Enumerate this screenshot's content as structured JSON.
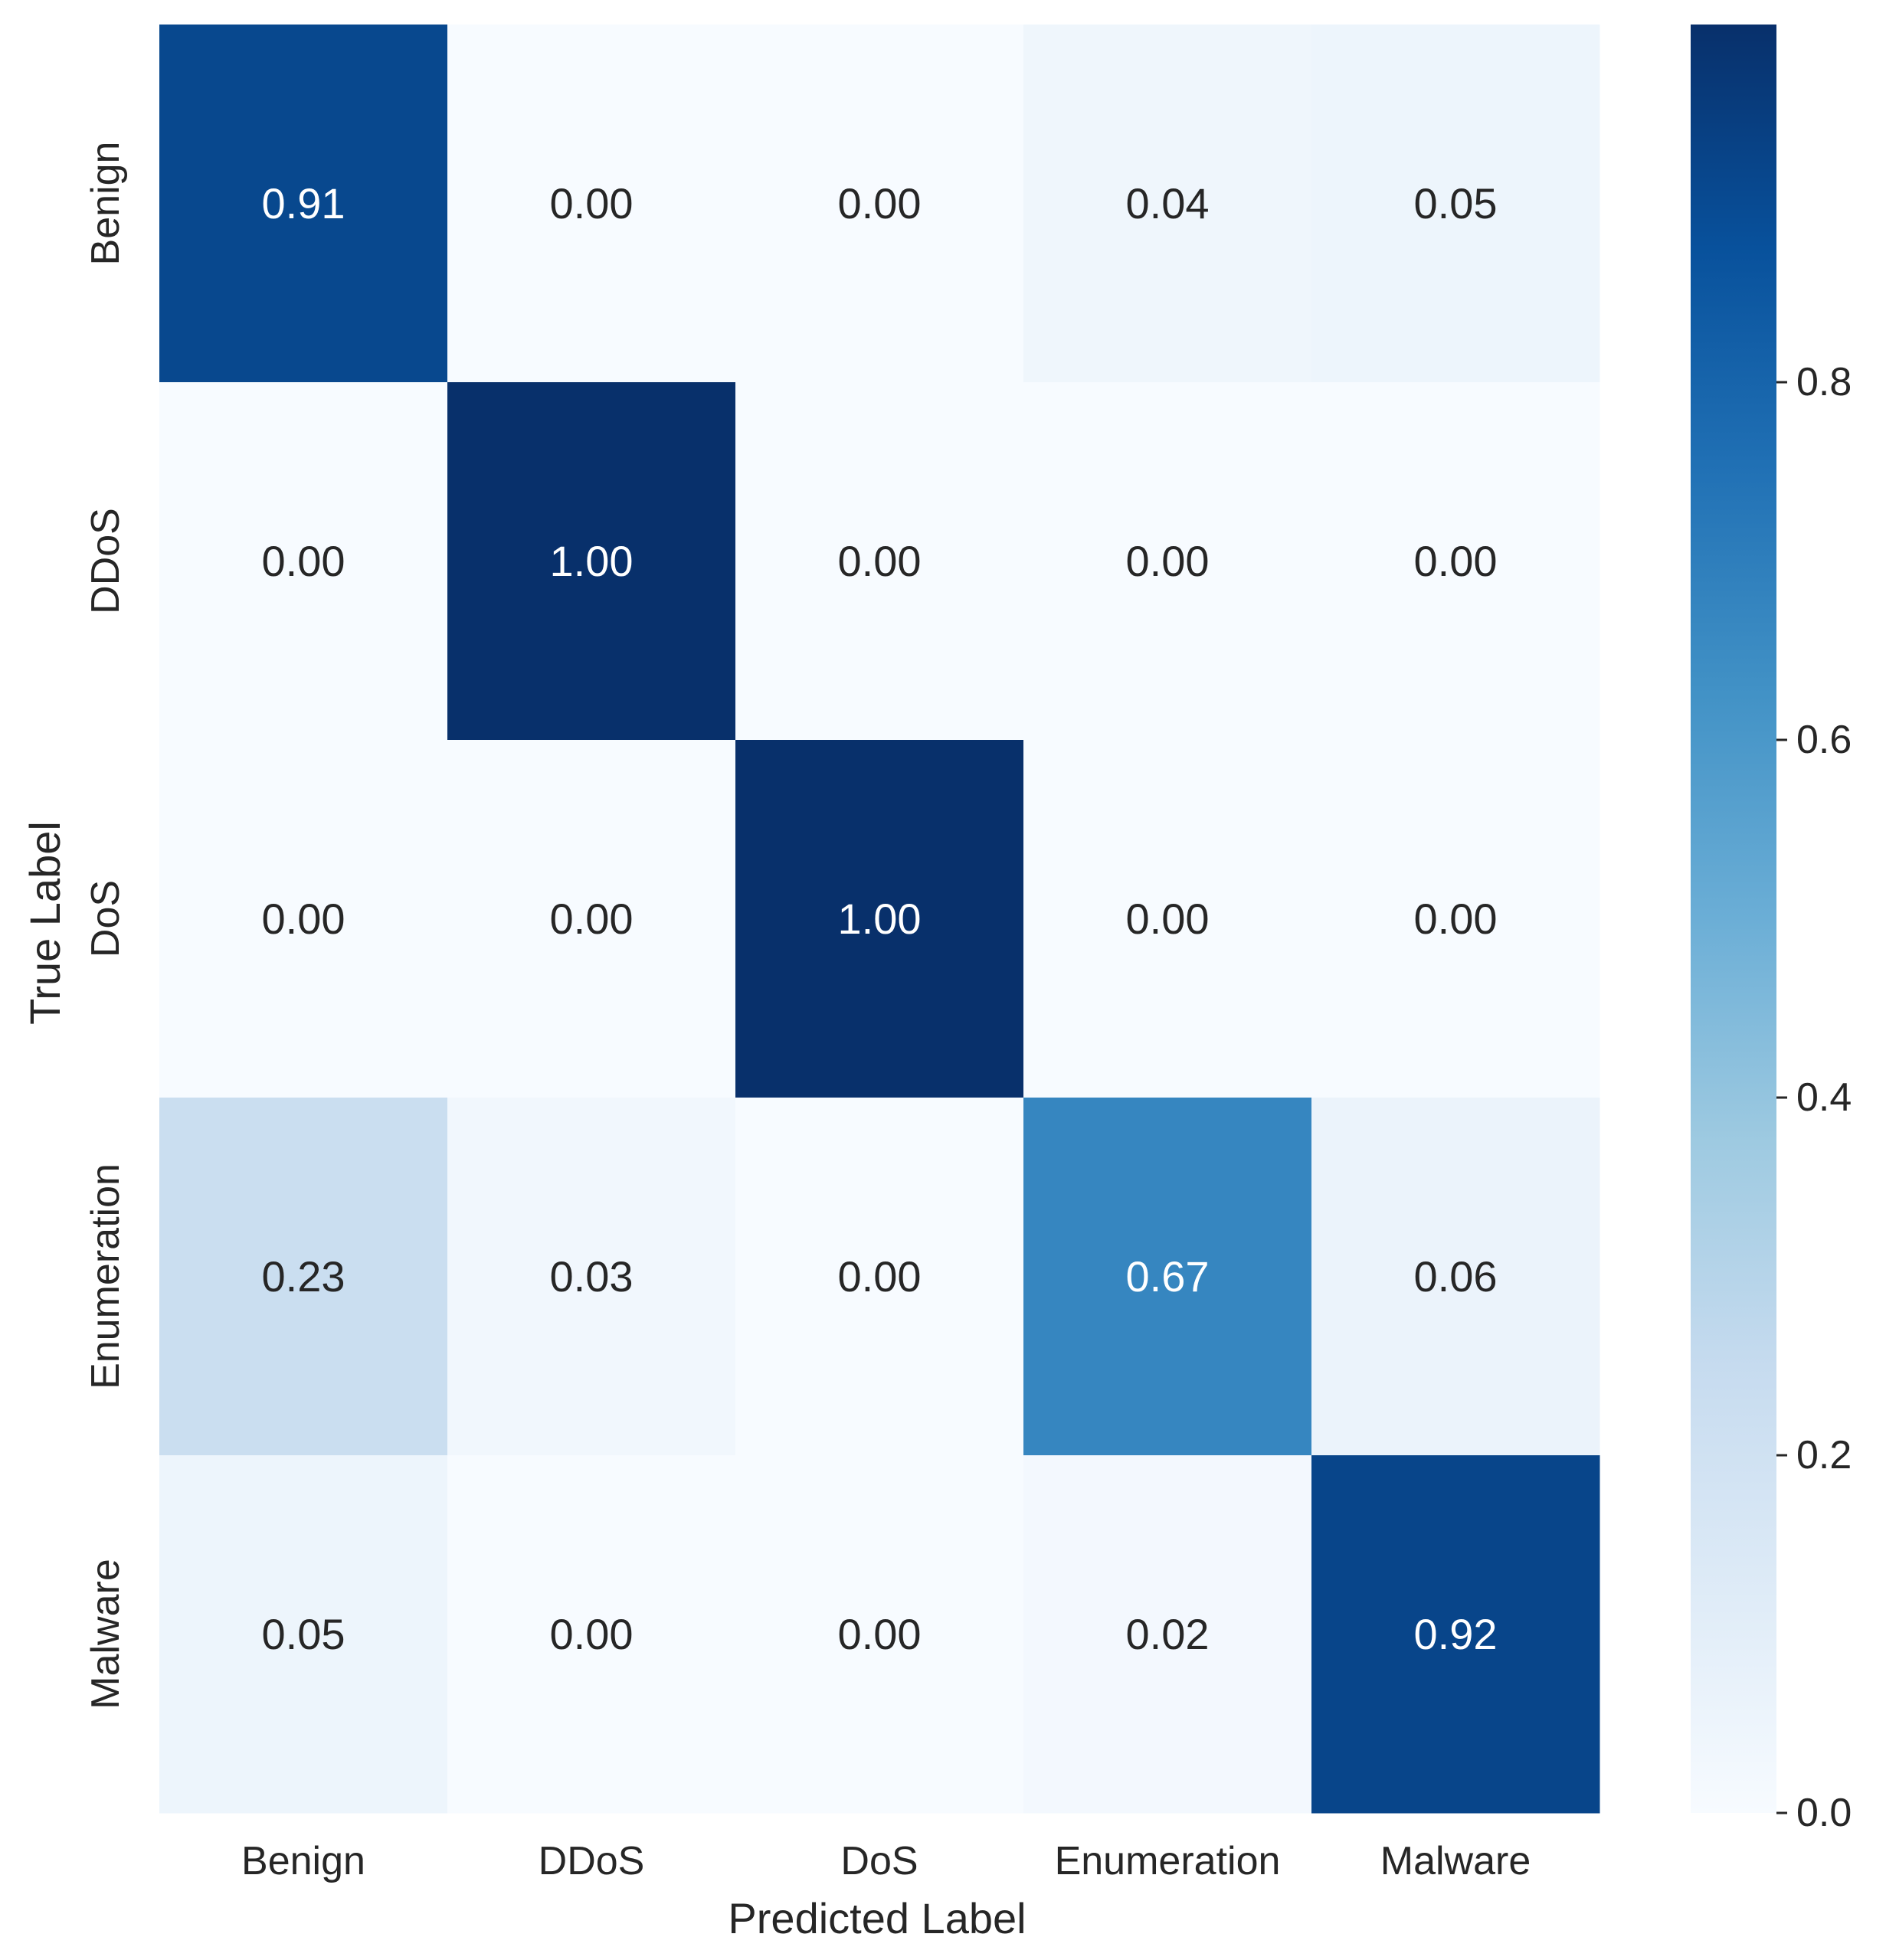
{
  "chart_data": {
    "type": "heatmap",
    "title": "",
    "xlabel": "Predicted Label",
    "ylabel": "True Label",
    "x_categories": [
      "Benign",
      "DDoS",
      "DoS",
      "Enumeration",
      "Malware"
    ],
    "y_categories": [
      "Benign",
      "DDoS",
      "DoS",
      "Enumeration",
      "Malware"
    ],
    "values": [
      [
        0.91,
        0.0,
        0.0,
        0.04,
        0.05
      ],
      [
        0.0,
        1.0,
        0.0,
        0.0,
        0.0
      ],
      [
        0.0,
        0.0,
        1.0,
        0.0,
        0.0
      ],
      [
        0.23,
        0.03,
        0.0,
        0.67,
        0.06
      ],
      [
        0.05,
        0.0,
        0.0,
        0.02,
        0.92
      ]
    ],
    "cell_labels": [
      [
        "0.91",
        "0.00",
        "0.00",
        "0.04",
        "0.05"
      ],
      [
        "0.00",
        "1.00",
        "0.00",
        "0.00",
        "0.00"
      ],
      [
        "0.00",
        "0.00",
        "1.00",
        "0.00",
        "0.00"
      ],
      [
        "0.23",
        "0.03",
        "0.00",
        "0.67",
        "0.06"
      ],
      [
        "0.05",
        "0.00",
        "0.00",
        "0.02",
        "0.92"
      ]
    ],
    "colormap": "Blues",
    "colorbar": {
      "range": [
        0.0,
        1.0
      ],
      "ticks": [
        0.0,
        0.2,
        0.4,
        0.6,
        0.8
      ],
      "tick_labels": [
        "0.0",
        "0.2",
        "0.4",
        "0.6",
        "0.8"
      ]
    },
    "grid": false,
    "legend": "colorbar-right"
  }
}
